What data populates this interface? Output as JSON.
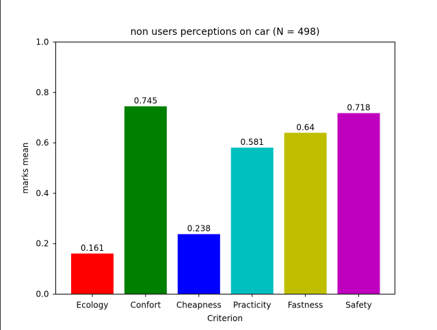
{
  "chart_data": {
    "type": "bar",
    "title": "non users perceptions on car (N = 498)",
    "xlabel": "Criterion",
    "ylabel": "marks mean",
    "ylim": [
      0,
      1.0
    ],
    "yticks": [
      "0.0",
      "0.2",
      "0.4",
      "0.6",
      "0.8",
      "1.0"
    ],
    "categories": [
      "Ecology",
      "Confort",
      "Cheapness",
      "Practicity",
      "Fastness",
      "Safety"
    ],
    "values": [
      0.161,
      0.745,
      0.238,
      0.581,
      0.64,
      0.718
    ],
    "value_labels": [
      "0.161",
      "0.745",
      "0.238",
      "0.581",
      "0.64",
      "0.718"
    ],
    "colors": [
      "#ff0000",
      "#008000",
      "#0000ff",
      "#00bfbf",
      "#bfbf00",
      "#bf00bf"
    ],
    "grid": false,
    "legend": "none"
  }
}
